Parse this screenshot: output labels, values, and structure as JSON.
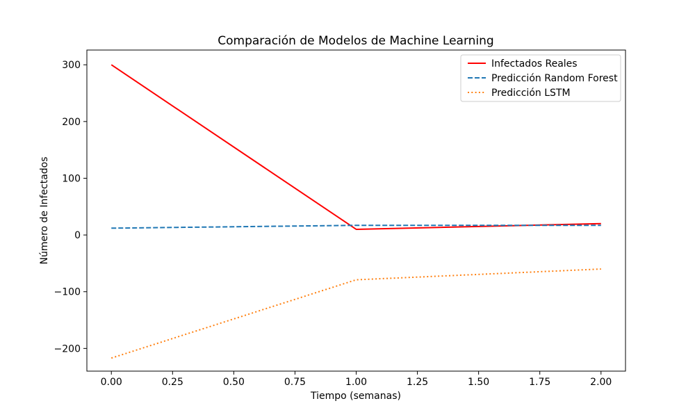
{
  "chart_data": {
    "type": "line",
    "title": "Comparación de Modelos de Machine Learning",
    "xlabel": "Tiempo (semanas)",
    "ylabel": "Número de Infectados",
    "x": [
      0,
      1,
      2
    ],
    "xlim": [
      -0.1,
      2.1
    ],
    "ylim": [
      -240,
      326
    ],
    "xticks": [
      "0.00",
      "0.25",
      "0.50",
      "0.75",
      "1.00",
      "1.25",
      "1.50",
      "1.75",
      "2.00"
    ],
    "yticks": [
      "−200",
      "−100",
      "0",
      "100",
      "200",
      "300"
    ],
    "grid": false,
    "legend_position": "top-right",
    "series": [
      {
        "name": "Infectados Reales",
        "values": [
          300,
          10,
          20
        ],
        "color": "#ff0000",
        "style": "solid"
      },
      {
        "name": "Predicción Random Forest",
        "values": [
          12,
          17,
          17
        ],
        "color": "#1f77b4",
        "style": "dashed"
      },
      {
        "name": "Predicción LSTM",
        "values": [
          -217,
          -79,
          -60
        ],
        "color": "#ff7f0e",
        "style": "dotted"
      }
    ]
  }
}
